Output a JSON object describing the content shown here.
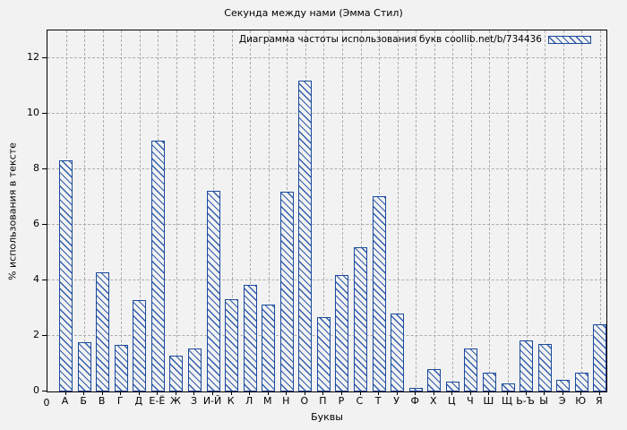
{
  "window": {
    "title": "Секунда между нами (Эмма Стил)"
  },
  "chart_data": {
    "type": "bar",
    "title": "Секунда между нами (Эмма Стил)",
    "legend_label": "Диаграмма частоты использования букв coollib.net/b/734436",
    "legend_position": "top-right-inside",
    "legend_swatch": "blue-diagonal-hatch-box",
    "xlabel": "Буквы",
    "ylabel": "% использования в тексте",
    "origin_label": "0",
    "categories": [
      "А",
      "Б",
      "В",
      "Г",
      "Д",
      "Е-Ё",
      "Ж",
      "З",
      "И-Й",
      "К",
      "Л",
      "М",
      "Н",
      "О",
      "П",
      "Р",
      "С",
      "Т",
      "У",
      "Ф",
      "Х",
      "Ц",
      "Ч",
      "Ш",
      "Щ",
      "Ь-Ъ",
      "Ы",
      "Э",
      "Ю",
      "Я"
    ],
    "values": [
      8.33,
      1.77,
      4.29,
      1.68,
      3.29,
      9.03,
      1.29,
      1.56,
      7.24,
      3.31,
      3.84,
      3.13,
      7.19,
      11.2,
      2.67,
      4.18,
      5.2,
      7.02,
      2.81,
      0.12,
      0.81,
      0.35,
      1.56,
      0.68,
      0.28,
      1.85,
      1.71,
      0.41,
      0.68,
      2.42
    ],
    "yticks": [
      0,
      2,
      4,
      6,
      8,
      10,
      12
    ],
    "ylim": [
      0,
      13
    ],
    "grid": true,
    "bar_style": "diagonal-hatch",
    "colors": {
      "background": "#f2f2f2",
      "bar_border": "#1a4a9c",
      "bar_hatch": "#2f5cac",
      "bar_fill": "#f2f2f2",
      "grid": "#adadad",
      "axis": "#000000",
      "text": "#000000"
    }
  }
}
